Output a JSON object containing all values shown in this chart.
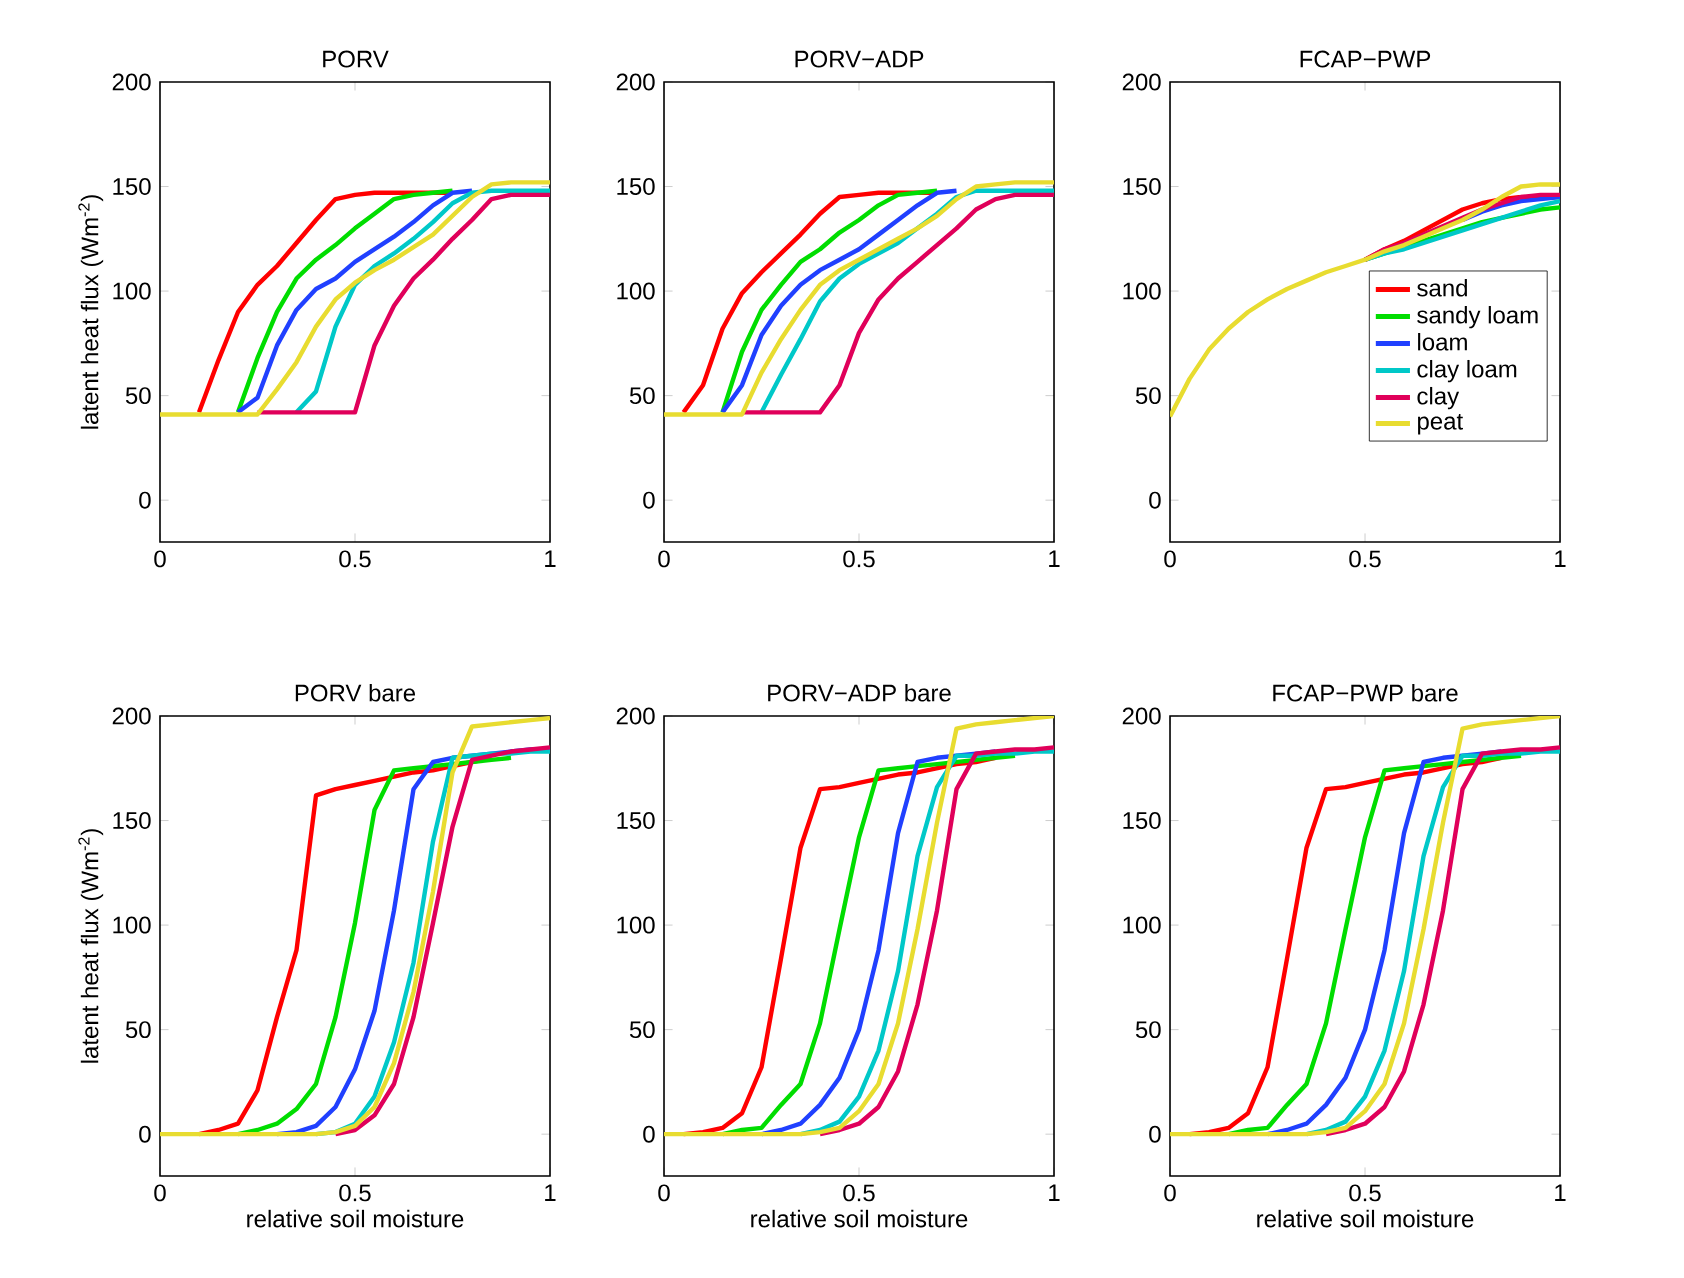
{
  "chart_data": [
    {
      "type": "line",
      "title": "PORV",
      "ylabel": "latent heat flux (Wm$^{-2}$)",
      "x": [
        0,
        0.05,
        0.1,
        0.15,
        0.2,
        0.25,
        0.3,
        0.35,
        0.4,
        0.45,
        0.5,
        0.55,
        0.6,
        0.65,
        0.7,
        0.75,
        0.8,
        0.85,
        0.9,
        0.95,
        1
      ],
      "xlim": [
        0,
        1
      ],
      "xticks": [
        0,
        0.5,
        1
      ],
      "ylim": [
        -20,
        200
      ],
      "yticks": [
        0,
        50,
        100,
        150,
        200
      ],
      "series": [
        {
          "color": "#ff0000",
          "values": [
            null,
            null,
            42,
            67,
            90,
            103,
            112,
            123,
            134,
            144,
            146,
            147,
            147,
            147,
            147,
            147,
            null,
            null,
            null,
            null,
            null
          ]
        },
        {
          "color": "#00dd00",
          "values": [
            null,
            null,
            null,
            null,
            42,
            68,
            90,
            106,
            115,
            122,
            130,
            137,
            144,
            146,
            147,
            148,
            null,
            null,
            null,
            null,
            null
          ]
        },
        {
          "color": "#2040ff",
          "values": [
            null,
            null,
            null,
            null,
            42,
            49,
            74,
            91,
            101,
            106,
            114,
            120,
            126,
            133,
            141,
            147,
            148,
            null,
            null,
            null,
            null
          ]
        },
        {
          "color": "#00c8c8",
          "values": [
            null,
            null,
            null,
            null,
            null,
            null,
            null,
            42,
            52,
            83,
            103,
            112,
            118,
            125,
            133,
            142,
            147,
            148,
            148,
            148,
            148
          ]
        },
        {
          "color": "#e0005a",
          "values": [
            null,
            null,
            null,
            null,
            null,
            42,
            42,
            42,
            42,
            42,
            42,
            74,
            93,
            106,
            115,
            125,
            134,
            144,
            146,
            146,
            146
          ]
        },
        {
          "color": "#e8dc30",
          "values": [
            41,
            41,
            41,
            41,
            41,
            41,
            53,
            66,
            83,
            96,
            104,
            110,
            115,
            121,
            127,
            136,
            145,
            151,
            152,
            152,
            152
          ]
        }
      ]
    },
    {
      "type": "line",
      "title": "PORV−ADP",
      "x": [
        0,
        0.05,
        0.1,
        0.15,
        0.2,
        0.25,
        0.3,
        0.35,
        0.4,
        0.45,
        0.5,
        0.55,
        0.6,
        0.65,
        0.7,
        0.75,
        0.8,
        0.85,
        0.9,
        0.95,
        1
      ],
      "xlim": [
        0,
        1
      ],
      "xticks": [
        0,
        0.5,
        1
      ],
      "ylim": [
        -20,
        200
      ],
      "yticks": [
        0,
        50,
        100,
        150,
        200
      ],
      "series": [
        {
          "color": "#ff0000",
          "values": [
            null,
            42,
            55,
            82,
            99,
            109,
            118,
            127,
            137,
            145,
            146,
            147,
            147,
            147,
            147,
            null,
            null,
            null,
            null,
            null,
            null
          ]
        },
        {
          "color": "#00dd00",
          "values": [
            null,
            null,
            null,
            42,
            71,
            91,
            103,
            114,
            120,
            128,
            134,
            141,
            146,
            147,
            148,
            null,
            null,
            null,
            null,
            null,
            null
          ]
        },
        {
          "color": "#2040ff",
          "values": [
            null,
            null,
            null,
            42,
            55,
            79,
            93,
            103,
            110,
            115,
            120,
            127,
            134,
            141,
            147,
            148,
            null,
            null,
            null,
            null,
            null
          ]
        },
        {
          "color": "#00c8c8",
          "values": [
            null,
            null,
            null,
            null,
            null,
            42,
            60,
            77,
            95,
            106,
            113,
            118,
            123,
            130,
            137,
            145,
            148,
            148,
            148,
            148,
            148
          ]
        },
        {
          "color": "#e0005a",
          "values": [
            null,
            null,
            null,
            null,
            42,
            42,
            42,
            42,
            42,
            55,
            80,
            96,
            106,
            114,
            122,
            130,
            139,
            144,
            146,
            146,
            146
          ]
        },
        {
          "color": "#e8dc30",
          "values": [
            41,
            41,
            41,
            41,
            41,
            61,
            77,
            91,
            103,
            110,
            115,
            120,
            125,
            130,
            136,
            144,
            150,
            151,
            152,
            152,
            152
          ]
        }
      ]
    },
    {
      "type": "line",
      "title": "FCAP−PWP",
      "legend": "right",
      "x": [
        0,
        0.05,
        0.1,
        0.15,
        0.2,
        0.25,
        0.3,
        0.35,
        0.4,
        0.45,
        0.5,
        0.55,
        0.6,
        0.65,
        0.7,
        0.75,
        0.8,
        0.85,
        0.9,
        0.95,
        1
      ],
      "xlim": [
        0,
        1
      ],
      "xticks": [
        0,
        0.5,
        1
      ],
      "ylim": [
        -20,
        200
      ],
      "yticks": [
        0,
        50,
        100,
        150,
        200
      ],
      "series": [
        {
          "name": "sand",
          "color": "#ff0000",
          "values": [
            null,
            null,
            null,
            null,
            null,
            null,
            null,
            null,
            null,
            null,
            115,
            120,
            124,
            129,
            134,
            139,
            142,
            144,
            145,
            145,
            145
          ]
        },
        {
          "name": "sandy loam",
          "color": "#00dd00",
          "values": [
            null,
            null,
            null,
            null,
            null,
            null,
            null,
            null,
            null,
            null,
            115,
            118,
            121,
            124,
            127,
            130,
            133,
            135,
            137,
            139,
            140
          ]
        },
        {
          "name": "loam",
          "color": "#2040ff",
          "values": [
            null,
            null,
            null,
            null,
            null,
            null,
            null,
            null,
            null,
            null,
            null,
            null,
            null,
            null,
            null,
            134,
            138,
            141,
            143,
            144,
            145
          ]
        },
        {
          "name": "clay loam",
          "color": "#00c8c8",
          "values": [
            null,
            null,
            null,
            null,
            null,
            null,
            null,
            null,
            null,
            null,
            115,
            118,
            120,
            123,
            126,
            129,
            132,
            135,
            138,
            141,
            143
          ]
        },
        {
          "name": "clay",
          "color": "#e0005a",
          "values": [
            null,
            null,
            null,
            null,
            null,
            null,
            null,
            null,
            null,
            null,
            115,
            120,
            123,
            127,
            131,
            135,
            139,
            142,
            145,
            146,
            146
          ]
        },
        {
          "name": "peat",
          "color": "#e8dc30",
          "values": [
            40,
            58,
            72,
            82,
            90,
            96,
            101,
            105,
            109,
            112,
            115,
            119,
            122,
            126,
            130,
            134,
            139,
            145,
            150,
            151,
            151
          ]
        }
      ]
    },
    {
      "type": "line",
      "title": "PORV bare",
      "xlabel": "relative soil moisture",
      "ylabel": "latent heat flux (Wm$^{-2}$)",
      "x": [
        0,
        0.05,
        0.1,
        0.15,
        0.2,
        0.25,
        0.3,
        0.35,
        0.4,
        0.45,
        0.5,
        0.55,
        0.6,
        0.65,
        0.7,
        0.75,
        0.8,
        0.85,
        0.9,
        0.95,
        1
      ],
      "xlim": [
        0,
        1
      ],
      "xticks": [
        0,
        0.5,
        1
      ],
      "ylim": [
        -20,
        200
      ],
      "yticks": [
        0,
        50,
        100,
        150,
        200
      ],
      "series": [
        {
          "color": "#ff0000",
          "values": [
            null,
            null,
            0,
            2,
            5,
            21,
            56,
            88,
            162,
            165,
            167,
            169,
            171,
            173,
            174,
            176,
            178,
            180,
            null,
            null,
            null
          ]
        },
        {
          "color": "#00dd00",
          "values": [
            null,
            null,
            null,
            null,
            0,
            2,
            5,
            12,
            24,
            56,
            101,
            155,
            174,
            175,
            176,
            177,
            178,
            179,
            180,
            null,
            null
          ]
        },
        {
          "color": "#2040ff",
          "values": [
            null,
            null,
            null,
            null,
            null,
            null,
            0,
            1,
            4,
            13,
            31,
            59,
            107,
            165,
            178,
            180,
            181,
            182,
            183,
            184,
            184
          ]
        },
        {
          "color": "#00c8c8",
          "values": [
            null,
            null,
            null,
            null,
            null,
            null,
            null,
            null,
            0,
            1,
            5,
            18,
            44,
            82,
            140,
            180,
            181,
            182,
            182,
            183,
            183
          ]
        },
        {
          "color": "#e0005a",
          "values": [
            null,
            null,
            null,
            null,
            null,
            null,
            null,
            null,
            null,
            0,
            2,
            9,
            24,
            56,
            101,
            147,
            179,
            181,
            183,
            184,
            185
          ]
        },
        {
          "color": "#e8dc30",
          "values": [
            0,
            0,
            0,
            0,
            0,
            0,
            0,
            0,
            0,
            1,
            4,
            13,
            34,
            68,
            116,
            173,
            195,
            196,
            197,
            198,
            199
          ]
        }
      ]
    },
    {
      "type": "line",
      "title": "PORV−ADP bare",
      "xlabel": "relative soil moisture",
      "x": [
        0,
        0.05,
        0.1,
        0.15,
        0.2,
        0.25,
        0.3,
        0.35,
        0.4,
        0.45,
        0.5,
        0.55,
        0.6,
        0.65,
        0.7,
        0.75,
        0.8,
        0.85,
        0.9,
        0.95,
        1
      ],
      "xlim": [
        0,
        1
      ],
      "xticks": [
        0,
        0.5,
        1
      ],
      "ylim": [
        -20,
        200
      ],
      "yticks": [
        0,
        50,
        100,
        150,
        200
      ],
      "series": [
        {
          "color": "#ff0000",
          "values": [
            null,
            0,
            1,
            3,
            10,
            32,
            84,
            137,
            165,
            166,
            168,
            170,
            172,
            173,
            175,
            177,
            178,
            180,
            null,
            null,
            null
          ]
        },
        {
          "color": "#00dd00",
          "values": [
            null,
            null,
            null,
            0,
            2,
            3,
            14,
            24,
            53,
            98,
            142,
            174,
            175,
            176,
            177,
            178,
            179,
            180,
            181,
            null,
            null
          ]
        },
        {
          "color": "#2040ff",
          "values": [
            null,
            null,
            null,
            null,
            null,
            0,
            2,
            5,
            14,
            27,
            50,
            88,
            144,
            178,
            180,
            181,
            182,
            183,
            null,
            null,
            null
          ]
        },
        {
          "color": "#00c8c8",
          "values": [
            null,
            null,
            null,
            null,
            null,
            null,
            null,
            0,
            2,
            6,
            18,
            40,
            78,
            133,
            166,
            181,
            181,
            182,
            182,
            183,
            183
          ]
        },
        {
          "color": "#e0005a",
          "values": [
            null,
            null,
            null,
            null,
            null,
            null,
            null,
            null,
            0,
            2,
            5,
            13,
            30,
            62,
            107,
            165,
            182,
            183,
            184,
            184,
            185
          ]
        },
        {
          "color": "#e8dc30",
          "values": [
            0,
            0,
            0,
            0,
            0,
            0,
            0,
            0,
            1,
            3,
            11,
            24,
            53,
            98,
            149,
            194,
            196,
            197,
            198,
            199,
            200
          ]
        }
      ]
    },
    {
      "type": "line",
      "title": "FCAP−PWP bare",
      "xlabel": "relative soil moisture",
      "x": [
        0,
        0.05,
        0.1,
        0.15,
        0.2,
        0.25,
        0.3,
        0.35,
        0.4,
        0.45,
        0.5,
        0.55,
        0.6,
        0.65,
        0.7,
        0.75,
        0.8,
        0.85,
        0.9,
        0.95,
        1
      ],
      "xlim": [
        0,
        1
      ],
      "xticks": [
        0,
        0.5,
        1
      ],
      "ylim": [
        -20,
        200
      ],
      "yticks": [
        0,
        50,
        100,
        150,
        200
      ],
      "series": [
        {
          "color": "#ff0000",
          "values": [
            null,
            0,
            1,
            3,
            10,
            32,
            84,
            137,
            165,
            166,
            168,
            170,
            172,
            173,
            175,
            177,
            178,
            180,
            null,
            null,
            null
          ]
        },
        {
          "color": "#00dd00",
          "values": [
            null,
            null,
            null,
            0,
            2,
            3,
            14,
            24,
            53,
            98,
            142,
            174,
            175,
            176,
            177,
            178,
            179,
            180,
            181,
            null,
            null
          ]
        },
        {
          "color": "#2040ff",
          "values": [
            null,
            null,
            null,
            null,
            null,
            0,
            2,
            5,
            14,
            27,
            50,
            88,
            144,
            178,
            180,
            181,
            182,
            183,
            null,
            null,
            null
          ]
        },
        {
          "color": "#00c8c8",
          "values": [
            null,
            null,
            null,
            null,
            null,
            null,
            null,
            0,
            2,
            6,
            18,
            40,
            78,
            133,
            166,
            181,
            181,
            182,
            182,
            183,
            183
          ]
        },
        {
          "color": "#e0005a",
          "values": [
            null,
            null,
            null,
            null,
            null,
            null,
            null,
            null,
            0,
            2,
            5,
            13,
            30,
            62,
            107,
            165,
            182,
            183,
            184,
            184,
            185
          ]
        },
        {
          "color": "#e8dc30",
          "values": [
            0,
            0,
            0,
            0,
            0,
            0,
            0,
            0,
            1,
            3,
            11,
            24,
            53,
            98,
            149,
            194,
            196,
            197,
            198,
            199,
            200
          ]
        }
      ]
    }
  ]
}
